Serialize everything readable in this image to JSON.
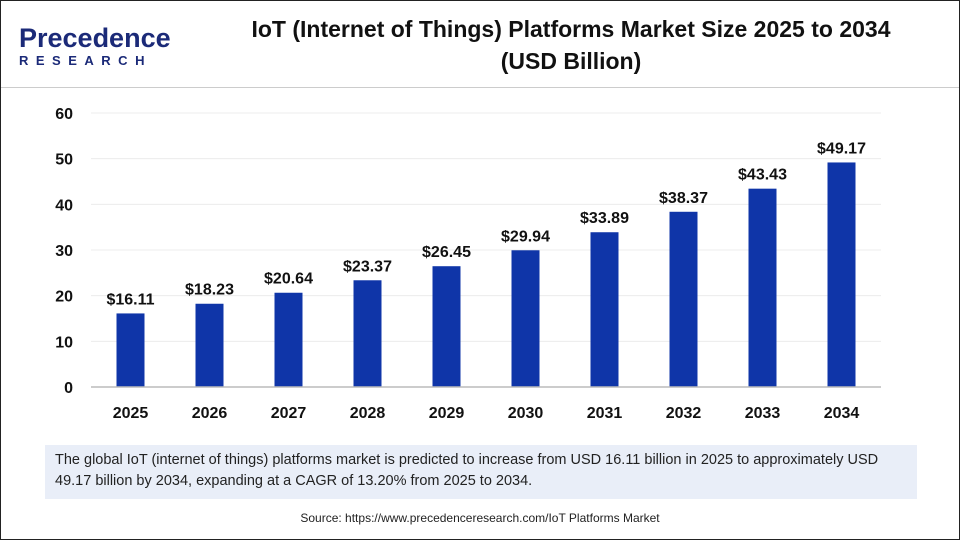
{
  "logo": {
    "brand_top": "Precedence",
    "brand_bottom": "RESEARCH"
  },
  "title_line1": "IoT (Internet of Things) Platforms Market Size 2025 to 2034",
  "title_line2": "(USD Billion)",
  "chart_data": {
    "type": "bar",
    "categories": [
      "2025",
      "2026",
      "2027",
      "2028",
      "2029",
      "2030",
      "2031",
      "2032",
      "2033",
      "2034"
    ],
    "values": [
      16.11,
      18.23,
      20.64,
      23.37,
      26.45,
      29.94,
      33.89,
      38.37,
      43.43,
      49.17
    ],
    "data_labels": [
      "$16.11",
      "$18.23",
      "$20.64",
      "$23.37",
      "$26.45",
      "$29.94",
      "$33.89",
      "$38.37",
      "$43.43",
      "$49.17"
    ],
    "ylim": [
      0,
      60
    ],
    "yticks": [
      0,
      10,
      20,
      30,
      40,
      50,
      60
    ],
    "grid": true,
    "bar_color": "#0f35a8",
    "xlabel": "",
    "ylabel": ""
  },
  "summary": "The global IoT (internet of things) platforms market is predicted to increase from USD 16.11 billion in 2025 to approximately USD 49.17 billion by 2034, expanding at a CAGR of 13.20% from 2025 to 2034.",
  "source": "Source: https://www.precedenceresearch.com/IoT Platforms Market"
}
